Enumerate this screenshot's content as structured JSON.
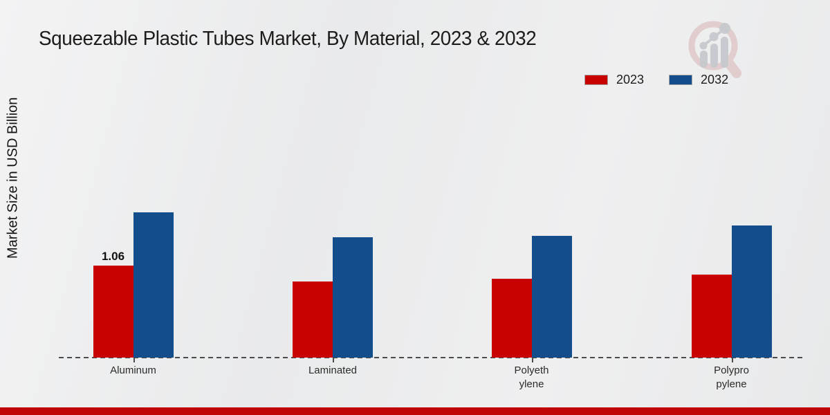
{
  "page": {
    "title": "Squeezable Plastic Tubes Market, By Material, 2023 & 2032",
    "y_axis_label": "Market Size in USD Billion"
  },
  "legend": [
    {
      "label": "2023",
      "color": "#c80101"
    },
    {
      "label": "2032",
      "color": "#144d8c"
    }
  ],
  "chart_data": {
    "type": "bar",
    "title": "Squeezable Plastic Tubes Market, By Material, 2023 & 2032",
    "xlabel": "",
    "ylabel": "Market Size in USD Billion",
    "categories": [
      "Aluminum",
      "Laminated",
      "Polyethylene",
      "Polypropylene"
    ],
    "category_label_lines": [
      [
        "Aluminum"
      ],
      [
        "Laminated"
      ],
      [
        "Polyeth",
        "ylene"
      ],
      [
        "Polypro",
        "pylene"
      ]
    ],
    "series": [
      {
        "name": "2023",
        "color": "#c80101",
        "values": [
          1.06,
          0.88,
          0.91,
          0.96
        ],
        "value_labels": [
          "1.06",
          "",
          "",
          ""
        ]
      },
      {
        "name": "2032",
        "color": "#144d8c",
        "values": [
          1.67,
          1.39,
          1.4,
          1.52
        ],
        "value_labels": [
          "",
          "",
          "",
          ""
        ]
      }
    ],
    "ylim": [
      0,
      2.0
    ],
    "grid": false,
    "legend_position": "top-right",
    "baseline_style": "dashed",
    "units": "USD Billion"
  },
  "branding": {
    "logo": "market-research-magnifier-logo",
    "bottom_bar_color": "#c10404"
  }
}
